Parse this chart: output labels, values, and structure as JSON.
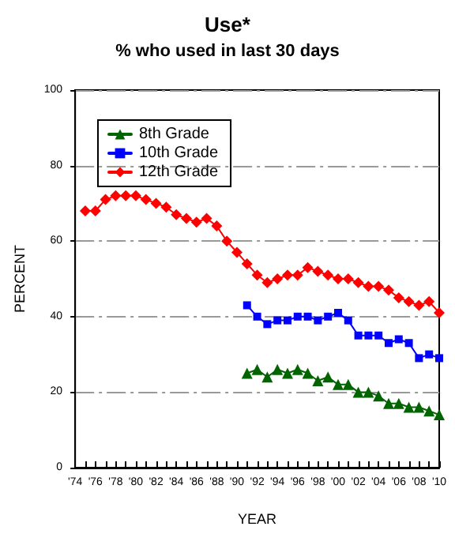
{
  "chart_data": {
    "type": "line",
    "title": "Use*",
    "subtitle": "% who used in last 30 days",
    "xlabel": "YEAR",
    "ylabel": "PERCENT",
    "xlim": [
      1974,
      2010
    ],
    "xticks": [
      {
        "value": 1974,
        "label": "'74"
      },
      {
        "value": 1975,
        "label": null
      },
      {
        "value": 1976,
        "label": "'76"
      },
      {
        "value": 1977,
        "label": null
      },
      {
        "value": 1978,
        "label": "'78"
      },
      {
        "value": 1979,
        "label": null
      },
      {
        "value": 1980,
        "label": "'80"
      },
      {
        "value": 1981,
        "label": null
      },
      {
        "value": 1982,
        "label": "'82"
      },
      {
        "value": 1983,
        "label": null
      },
      {
        "value": 1984,
        "label": "'84"
      },
      {
        "value": 1985,
        "label": null
      },
      {
        "value": 1986,
        "label": "'86"
      },
      {
        "value": 1987,
        "label": null
      },
      {
        "value": 1988,
        "label": "'88"
      },
      {
        "value": 1989,
        "label": null
      },
      {
        "value": 1990,
        "label": "'90"
      },
      {
        "value": 1991,
        "label": null
      },
      {
        "value": 1992,
        "label": "'92"
      },
      {
        "value": 1993,
        "label": null
      },
      {
        "value": 1994,
        "label": "'94"
      },
      {
        "value": 1995,
        "label": null
      },
      {
        "value": 1996,
        "label": "'96"
      },
      {
        "value": 1997,
        "label": null
      },
      {
        "value": 1998,
        "label": "'98"
      },
      {
        "value": 1999,
        "label": null
      },
      {
        "value": 2000,
        "label": "'00"
      },
      {
        "value": 2001,
        "label": null
      },
      {
        "value": 2002,
        "label": "'02"
      },
      {
        "value": 2003,
        "label": null
      },
      {
        "value": 2004,
        "label": "'04"
      },
      {
        "value": 2005,
        "label": null
      },
      {
        "value": 2006,
        "label": "'06"
      },
      {
        "value": 2007,
        "label": null
      },
      {
        "value": 2008,
        "label": "'08"
      },
      {
        "value": 2009,
        "label": null
      },
      {
        "value": 2010,
        "label": "'10"
      }
    ],
    "ylim": [
      0,
      100
    ],
    "yticks": [
      0,
      20,
      40,
      60,
      80,
      100
    ],
    "grid": "y",
    "legend": "top left",
    "line_style": "solid",
    "series": [
      {
        "name": "8th Grade",
        "color": "#006400",
        "marker": "triangle",
        "x": [
          1991,
          1992,
          1993,
          1994,
          1995,
          1996,
          1997,
          1998,
          1999,
          2000,
          2001,
          2002,
          2003,
          2004,
          2005,
          2006,
          2007,
          2008,
          2009,
          2010
        ],
        "values": [
          25,
          26,
          24,
          26,
          25,
          26,
          25,
          23,
          24,
          22,
          22,
          20,
          20,
          19,
          17,
          17,
          16,
          16,
          15,
          14
        ]
      },
      {
        "name": "10th Grade",
        "color": "#0000ff",
        "marker": "square",
        "x": [
          1991,
          1992,
          1993,
          1994,
          1995,
          1996,
          1997,
          1998,
          1999,
          2000,
          2001,
          2002,
          2003,
          2004,
          2005,
          2006,
          2007,
          2008,
          2009,
          2010
        ],
        "values": [
          43,
          40,
          38,
          39,
          39,
          40,
          40,
          39,
          40,
          41,
          39,
          35,
          35,
          35,
          33,
          34,
          33,
          29,
          30,
          29
        ]
      },
      {
        "name": "12th Grade",
        "color": "#ff0000",
        "marker": "diamond",
        "x": [
          1975,
          1976,
          1977,
          1978,
          1979,
          1980,
          1981,
          1982,
          1983,
          1984,
          1985,
          1986,
          1987,
          1988,
          1989,
          1990,
          1991,
          1992,
          1993,
          1994,
          1995,
          1996,
          1997,
          1998,
          1999,
          2000,
          2001,
          2002,
          2003,
          2004,
          2005,
          2006,
          2007,
          2008,
          2009,
          2010
        ],
        "values": [
          68,
          68,
          71,
          72,
          72,
          72,
          71,
          70,
          69,
          67,
          66,
          65,
          66,
          64,
          60,
          57,
          54,
          51,
          49,
          50,
          51,
          51,
          53,
          52,
          51,
          50,
          50,
          49,
          48,
          48,
          47,
          45,
          44,
          43,
          44,
          41
        ]
      }
    ]
  }
}
